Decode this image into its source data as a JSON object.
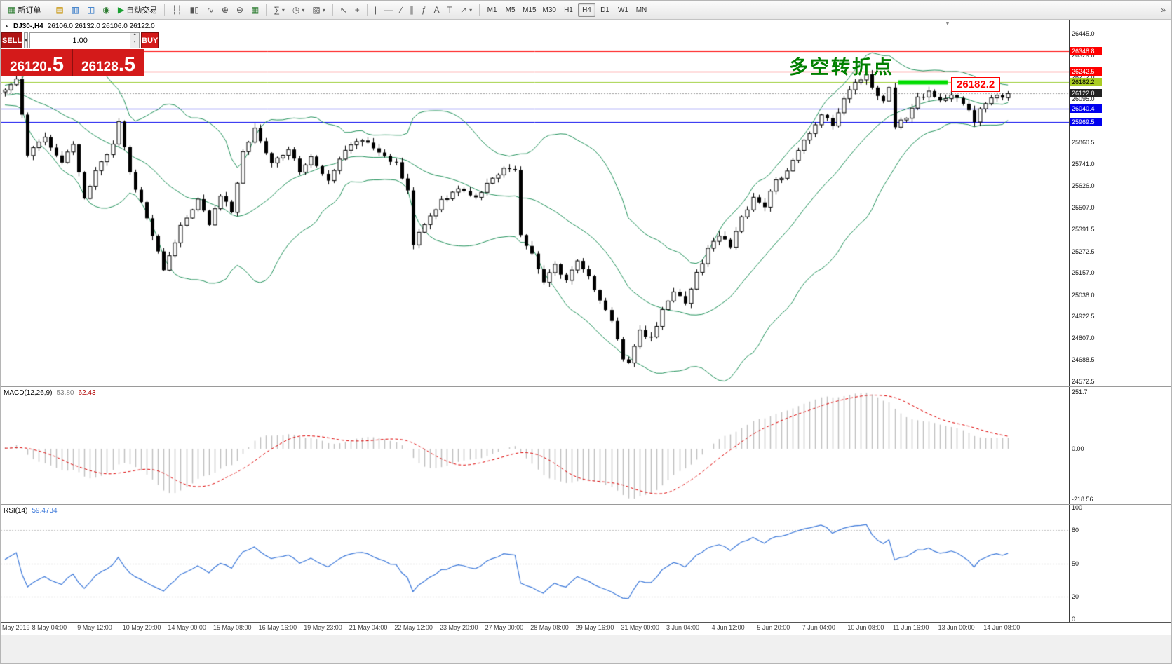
{
  "toolbar": {
    "items": [
      {
        "t": "btn",
        "name": "new-order-button",
        "icon": "new-order-icon",
        "glyph": "▦",
        "glyph_color": "#2e7d32",
        "label": "新订单"
      },
      {
        "t": "sep"
      },
      {
        "t": "btn",
        "name": "profiles-button",
        "icon": "profiles-icon",
        "glyph": "▤",
        "glyph_color": "#c79100"
      },
      {
        "t": "btn",
        "name": "market-watch-button",
        "icon": "market-watch-icon",
        "glyph": "▥",
        "glyph_color": "#1565c0"
      },
      {
        "t": "btn",
        "name": "data-window-button",
        "icon": "data-window-icon",
        "glyph": "◫",
        "glyph_color": "#1565c0"
      },
      {
        "t": "btn",
        "name": "navigator-button",
        "icon": "navigator-icon",
        "glyph": "◉",
        "glyph_color": "#2e7d32"
      },
      {
        "t": "btn",
        "name": "auto-trading-button",
        "icon": "auto-trading-icon",
        "glyph": "▶",
        "glyph_color": "#18a030",
        "label": "自动交易"
      },
      {
        "t": "sep"
      },
      {
        "t": "btn",
        "name": "bar-chart-button",
        "icon": "bar-chart-icon",
        "glyph": "┆┆"
      },
      {
        "t": "btn",
        "name": "candlestick-chart-button",
        "icon": "candlestick-chart-icon",
        "glyph": "▮▯"
      },
      {
        "t": "btn",
        "name": "line-chart-button",
        "icon": "line-chart-icon",
        "glyph": "∿"
      },
      {
        "t": "btn",
        "name": "zoom-in-button",
        "icon": "zoom-in-icon",
        "glyph": "⊕"
      },
      {
        "t": "btn",
        "name": "zoom-out-button",
        "icon": "zoom-out-icon",
        "glyph": "⊖"
      },
      {
        "t": "btn",
        "name": "tile-windows-button",
        "icon": "tile-windows-icon",
        "glyph": "▦",
        "glyph_color": "#2e7d32"
      },
      {
        "t": "sep"
      },
      {
        "t": "btn",
        "name": "indicators-button",
        "icon": "indicators-icon",
        "glyph": "∑",
        "dd": true
      },
      {
        "t": "btn",
        "name": "periods-button",
        "icon": "periods-icon",
        "glyph": "◷",
        "dd": true
      },
      {
        "t": "btn",
        "name": "templates-button",
        "icon": "templates-icon",
        "glyph": "▧",
        "dd": true
      },
      {
        "t": "sep"
      },
      {
        "t": "btn",
        "name": "cursor-button",
        "icon": "cursor-icon",
        "glyph": "↖"
      },
      {
        "t": "btn",
        "name": "crosshair-button",
        "icon": "crosshair-icon",
        "glyph": "+"
      },
      {
        "t": "sep"
      },
      {
        "t": "btn",
        "name": "vertical-line-button",
        "icon": "vertical-line-icon",
        "glyph": "|"
      },
      {
        "t": "btn",
        "name": "horizontal-line-button",
        "icon": "horizontal-line-icon",
        "glyph": "—"
      },
      {
        "t": "btn",
        "name": "trendline-button",
        "icon": "trendline-icon",
        "glyph": "∕"
      },
      {
        "t": "btn",
        "name": "equidistant-channel-button",
        "icon": "channel-icon",
        "glyph": "∥"
      },
      {
        "t": "btn",
        "name": "fibonacci-button",
        "icon": "fibonacci-icon",
        "glyph": "ƒ"
      },
      {
        "t": "btn",
        "name": "text-button",
        "icon": "text-icon",
        "glyph": "A"
      },
      {
        "t": "btn",
        "name": "text-label-button",
        "icon": "text-label-icon",
        "glyph": "T"
      },
      {
        "t": "btn",
        "name": "arrows-button",
        "icon": "arrow-icon",
        "glyph": "↗",
        "dd": true
      },
      {
        "t": "sep"
      },
      {
        "t": "tf"
      },
      {
        "t": "spring"
      },
      {
        "t": "btn",
        "name": "customize-toolbar-button",
        "icon": "customize-toolbar-icon",
        "glyph": "»"
      }
    ],
    "timeframes": [
      "M1",
      "M5",
      "M15",
      "M30",
      "H1",
      "H4",
      "D1",
      "W1",
      "MN"
    ],
    "active_timeframe": "H4"
  },
  "symbol_bar": {
    "marker": "▲",
    "symbol": "DJ30-,H4",
    "ohlc": "26106.0 26132.0 26106.0 26122.0"
  },
  "trade_panel": {
    "sell_label": "SELL",
    "buy_label": "BUY",
    "volume": "1.00",
    "sell_price_main": "26120",
    "sell_price_frac": ".5",
    "buy_price_main": "26128",
    "buy_price_frac": ".5"
  },
  "annotations": {
    "turning_point_text": "多空转折点",
    "turning_point_color": "#008000",
    "price_callout": "26182.2",
    "callout_color": "#ff0000"
  },
  "price_scale": {
    "labels": [
      "26445.0",
      "26329.0",
      "26212.0",
      "26095.0",
      "25978.0",
      "25860.5",
      "25741.0",
      "25626.0",
      "25507.0",
      "25391.5",
      "25272.5",
      "25157.0",
      "25038.0",
      "24922.5",
      "24807.0",
      "24688.5",
      "24572.5"
    ],
    "tags": [
      {
        "text": "26348.8",
        "bg": "#ff0000",
        "fg": "#ffffff",
        "price": 26348.8
      },
      {
        "text": "26242.5",
        "bg": "#ff0000",
        "fg": "#ffffff",
        "price": 26242.5
      },
      {
        "text": "26182.2",
        "bg": "#aacc22",
        "fg": "#000000",
        "price": 26182.2
      },
      {
        "text": "26122.0",
        "bg": "#222222",
        "fg": "#ffffff",
        "price": 26122.0
      },
      {
        "text": "26040.4",
        "bg": "#0000ee",
        "fg": "#ffffff",
        "price": 26040.4
      },
      {
        "text": "25969.5",
        "bg": "#0000ee",
        "fg": "#ffffff",
        "price": 25969.5
      }
    ]
  },
  "macd_panel": {
    "name": "MACD(12,26,9)",
    "value_main": "53.80",
    "value_signal": "62.43",
    "scale_top": "251.7",
    "scale_zero": "0.00",
    "scale_bottom": "-218.56",
    "bar_color": "#bdbdbd",
    "signal_color": "#dd0000"
  },
  "rsi_panel": {
    "name": "RSI(14)",
    "value": "59.4734",
    "scale": [
      "100",
      "80",
      "50",
      "20",
      "0"
    ],
    "levels": [
      80,
      50,
      20
    ],
    "line_color": "#3a77d9"
  },
  "time_axis": {
    "labels": [
      "May 2019",
      "8 May 04:00",
      "9 May 12:00",
      "10 May 20:00",
      "14 May 00:00",
      "15 May 08:00",
      "16 May 16:00",
      "19 May 23:00",
      "21 May 04:00",
      "22 May 12:00",
      "23 May 20:00",
      "27 May 00:00",
      "28 May 08:00",
      "29 May 16:00",
      "31 May 00:00",
      "3 Jun 04:00",
      "4 Jun 12:00",
      "5 Jun 20:00",
      "7 Jun 04:00",
      "10 Jun 08:00",
      "11 Jun 16:00",
      "13 Jun 00:00",
      "14 Jun 08:00"
    ]
  },
  "chart_data": {
    "type": "candlestick",
    "symbol": "DJ30-",
    "timeframe": "H4",
    "title": "DJ30-,H4",
    "n_candles": 178,
    "ylim": [
      24546,
      26520
    ],
    "last_close": 26122.0,
    "ohlc_display": {
      "open": 26106.0,
      "high": 26132.0,
      "low": 26106.0,
      "close": 26122.0
    },
    "price_path": {
      "idx": [
        0,
        2,
        4,
        7,
        10,
        12,
        14,
        16,
        19,
        20,
        22,
        25,
        28,
        31,
        34,
        36,
        38,
        40,
        42,
        44,
        47,
        50,
        52,
        54,
        57,
        59,
        61,
        63,
        66,
        69,
        71,
        72,
        74,
        77,
        80,
        83,
        85,
        88,
        90,
        91,
        93,
        95,
        97,
        99,
        101,
        103,
        105,
        107,
        109,
        110,
        112,
        114,
        116,
        118,
        120,
        122,
        124,
        126,
        128,
        130,
        132,
        134,
        136,
        138,
        140,
        142,
        144,
        146,
        148,
        150,
        152,
        153,
        155,
        156,
        157,
        159,
        161,
        163,
        165,
        167,
        169,
        171,
        173,
        175,
        177
      ],
      "close": [
        26150,
        26210,
        25800,
        25880,
        25760,
        25860,
        25560,
        25700,
        25850,
        25960,
        25700,
        25450,
        25170,
        25400,
        25550,
        25420,
        25580,
        25480,
        25800,
        25940,
        25750,
        25820,
        25700,
        25790,
        25650,
        25760,
        25850,
        25880,
        25800,
        25740,
        25600,
        25320,
        25420,
        25550,
        25600,
        25560,
        25640,
        25720,
        25700,
        25350,
        25250,
        25100,
        25200,
        25120,
        25230,
        25140,
        25000,
        24900,
        24700,
        24660,
        24850,
        24800,
        24950,
        25050,
        25000,
        25150,
        25280,
        25360,
        25300,
        25450,
        25560,
        25520,
        25650,
        25700,
        25820,
        25900,
        26000,
        25960,
        26090,
        26180,
        26220,
        26150,
        26080,
        26150,
        25950,
        26000,
        26100,
        26130,
        26080,
        26120,
        26060,
        25980,
        26080,
        26100,
        26122
      ]
    },
    "hlines": [
      {
        "price": 26348.8,
        "color": "#ff0000"
      },
      {
        "price": 26242.5,
        "color": "#ff0000"
      },
      {
        "price": 26182.2,
        "color": "#9acd32"
      },
      {
        "price": 26040.4,
        "color": "#0000ee"
      },
      {
        "price": 25969.5,
        "color": "#0000ee"
      }
    ],
    "bid_line": {
      "price": 26122.0,
      "color": "#999999",
      "dash": true
    },
    "highlight_segment": {
      "price": 26182.2,
      "from_idx": 158,
      "to_idx": 166,
      "color": "#00dd00",
      "thickness": 6
    },
    "indicators": {
      "bollinger": {
        "period": 20,
        "deviation": 2,
        "color": "#20915a"
      },
      "macd": {
        "fast": 12,
        "slow": 26,
        "signal": 9,
        "values": [
          53.8,
          62.43
        ]
      },
      "rsi": {
        "period": 14,
        "value": 59.4734
      }
    }
  }
}
